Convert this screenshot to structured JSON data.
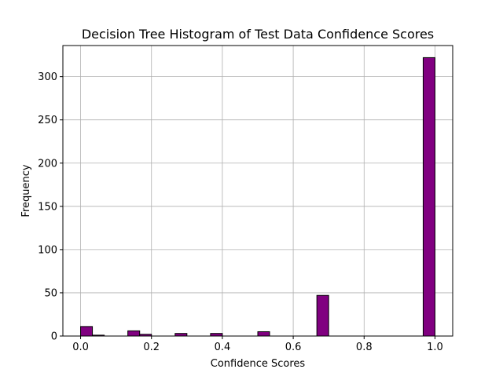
{
  "chart_data": {
    "type": "bar",
    "title": "Decision Tree Histogram of Test Data Confidence Scores",
    "xlabel": "Confidence Scores",
    "ylabel": "Frequency",
    "xlim": [
      -0.05,
      1.05
    ],
    "ylim": [
      0,
      336
    ],
    "grid": true,
    "bar_color": "#800080",
    "edge_color": "#000000",
    "grid_color": "#b0b0b0",
    "x_ticks": [
      {
        "value": 0.0,
        "label": "0.0"
      },
      {
        "value": 0.2,
        "label": "0.2"
      },
      {
        "value": 0.4,
        "label": "0.4"
      },
      {
        "value": 0.6,
        "label": "0.6"
      },
      {
        "value": 0.8,
        "label": "0.8"
      },
      {
        "value": 1.0,
        "label": "1.0"
      }
    ],
    "y_ticks": [
      {
        "value": 0,
        "label": "0"
      },
      {
        "value": 50,
        "label": "50"
      },
      {
        "value": 100,
        "label": "100"
      },
      {
        "value": 150,
        "label": "150"
      },
      {
        "value": 200,
        "label": "200"
      },
      {
        "value": 250,
        "label": "250"
      },
      {
        "value": 300,
        "label": "300"
      }
    ],
    "bins": [
      {
        "start": 0.0,
        "end": 0.0333,
        "count": 11
      },
      {
        "start": 0.0333,
        "end": 0.0667,
        "count": 1
      },
      {
        "start": 0.1333,
        "end": 0.1667,
        "count": 6
      },
      {
        "start": 0.1667,
        "end": 0.2,
        "count": 2
      },
      {
        "start": 0.2667,
        "end": 0.3,
        "count": 3
      },
      {
        "start": 0.3667,
        "end": 0.4,
        "count": 3
      },
      {
        "start": 0.5,
        "end": 0.5333,
        "count": 5
      },
      {
        "start": 0.6667,
        "end": 0.7,
        "count": 47
      },
      {
        "start": 0.9667,
        "end": 1.0,
        "count": 322
      }
    ]
  }
}
